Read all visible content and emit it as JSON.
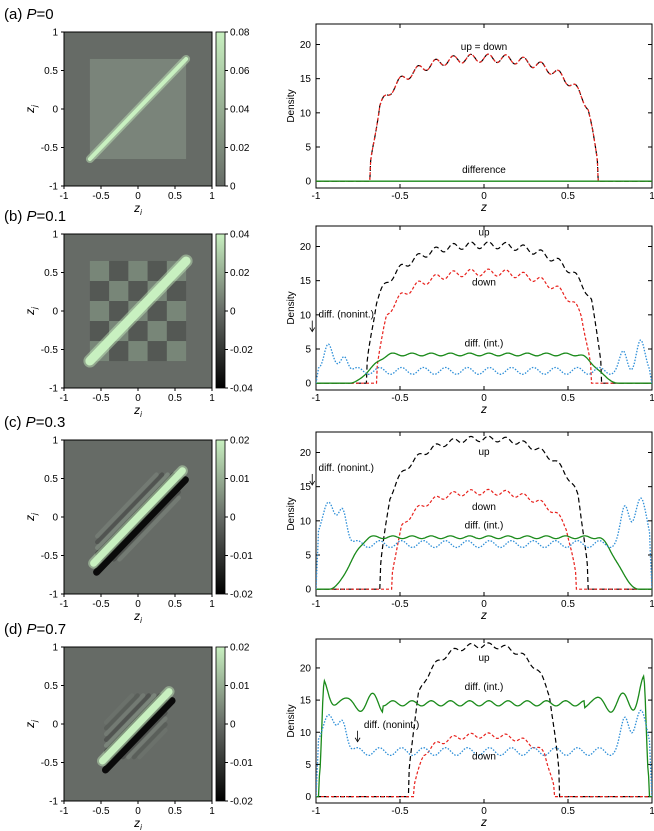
{
  "figure_description": "Four rows of panels (a)-(d) for polarizations P = 0, 0.1, 0.3, 0.7; left: correlation heat map in (z_i, z_j), right: density profiles vs z",
  "colors": {
    "up": "#000000",
    "down": "#e8211c",
    "diff_int": "#1a8a1a",
    "diff_nonint": "#2e8fd8",
    "map_background": "#666b66",
    "map_positive": "#c8f0c0",
    "map_negative": "#000000"
  },
  "chart_data": [
    {
      "type": "heatmap",
      "panel": "a",
      "label_prefix": "(a) ",
      "label_var": "P",
      "label_value": "=0",
      "xlabel": "z",
      "xlabel_sub": "i",
      "ylabel": "z",
      "ylabel_sub": "j",
      "xlim": [
        -1,
        1
      ],
      "ylim": [
        -1,
        1
      ],
      "xticks": [
        "-1",
        "-0.5",
        "0",
        "0.5",
        "1"
      ],
      "yticks": [
        "1",
        "0.5",
        "0",
        "-0.5",
        "-1"
      ],
      "colorbar_ticks": [
        "0.08",
        "0.06",
        "0.04",
        "0.02",
        "0"
      ],
      "colorbar_range": [
        0,
        0.08
      ],
      "diagonal_extent": [
        -0.65,
        0.65
      ],
      "stripe_count": 0
    },
    {
      "type": "line",
      "panel": "a",
      "xlabel": "z",
      "ylabel": "Density",
      "xlim": [
        -1,
        1
      ],
      "ylim": [
        -1,
        23
      ],
      "xticks": [
        "-1",
        "-0.5",
        "0",
        "0.5",
        "1"
      ],
      "yticks": [
        "20",
        "15",
        "10",
        "5",
        "0"
      ],
      "yticks_values": [
        20,
        15,
        10,
        5,
        0
      ],
      "series": [
        {
          "name": "up = down",
          "role": "up",
          "center": 18,
          "edge": 0.68,
          "wiggle": 0.6
        },
        {
          "name": "down",
          "role": "down",
          "center": 18,
          "edge": 0.68,
          "wiggle": 0.6
        },
        {
          "name": "difference",
          "role": "diff_int",
          "level": 0
        }
      ],
      "annotations": [
        {
          "text": "up = down",
          "x": 0,
          "y": 19.2
        },
        {
          "text": "difference",
          "x": 0,
          "y": 1.2
        }
      ]
    },
    {
      "type": "heatmap",
      "panel": "b",
      "label_prefix": "(b) ",
      "label_var": "P",
      "label_value": "=0.1",
      "xlabel": "z",
      "xlabel_sub": "i",
      "ylabel": "z",
      "ylabel_sub": "j",
      "xlim": [
        -1,
        1
      ],
      "ylim": [
        -1,
        1
      ],
      "xticks": [
        "-1",
        "-0.5",
        "0",
        "0.5",
        "1"
      ],
      "yticks": [
        "1",
        "0.5",
        "0",
        "-0.5",
        "-1"
      ],
      "colorbar_ticks": [
        "0.04",
        "0.02",
        "0",
        "-0.02",
        "-0.04"
      ],
      "colorbar_range": [
        -0.04,
        0.04
      ],
      "diagonal_extent": [
        -0.65,
        0.65
      ],
      "stripe_count": 0
    },
    {
      "type": "line",
      "panel": "b",
      "xlabel": "z",
      "ylabel": "Density",
      "xlim": [
        -1,
        1
      ],
      "ylim": [
        -1,
        23
      ],
      "xticks": [
        "-1",
        "-0.5",
        "0",
        "0.5",
        "1"
      ],
      "yticks": [
        "20",
        "15",
        "10",
        "5",
        "0"
      ],
      "yticks_values": [
        20,
        15,
        10,
        5,
        0
      ],
      "series": [
        {
          "name": "up",
          "role": "up",
          "center": 20.2,
          "edge": 0.7,
          "wiggle": 0.5
        },
        {
          "name": "down",
          "role": "down",
          "center": 16.2,
          "edge": 0.64,
          "wiggle": 0.5
        },
        {
          "name": "diff. (int.)",
          "role": "diff_int",
          "center": 4.2,
          "edge": 0.8,
          "wiggle": 0.2
        },
        {
          "name": "diff. (nonint.)",
          "role": "diff_nonint",
          "center": 1.8,
          "edge_peak": 6,
          "wiggle": 0.5
        }
      ],
      "annotations": [
        {
          "text": "up",
          "x": 0,
          "y": 21.6
        },
        {
          "text": "down",
          "x": 0,
          "y": 14.3
        },
        {
          "text": "diff. (int.)",
          "x": 0,
          "y": 5.4
        },
        {
          "text": "diff. (nonint.)",
          "x": -0.82,
          "y": 9.6,
          "arrow": true
        }
      ]
    },
    {
      "type": "heatmap",
      "panel": "c",
      "label_prefix": "(c) ",
      "label_var": "P",
      "label_value": "=0.3",
      "xlabel": "z",
      "xlabel_sub": "i",
      "ylabel": "z",
      "ylabel_sub": "j",
      "xlim": [
        -1,
        1
      ],
      "ylim": [
        -1,
        1
      ],
      "xticks": [
        "-1",
        "-0.5",
        "0",
        "0.5",
        "1"
      ],
      "yticks": [
        "1",
        "0.5",
        "0",
        "-0.5",
        "-1"
      ],
      "colorbar_ticks": [
        "0.02",
        "0.01",
        "0",
        "-0.01",
        "-0.02"
      ],
      "colorbar_range": [
        -0.02,
        0.02
      ],
      "diagonal_extent": [
        -0.6,
        0.6
      ],
      "stripe_count": 4
    },
    {
      "type": "line",
      "panel": "c",
      "xlabel": "z",
      "ylabel": "Density",
      "xlim": [
        -1,
        1
      ],
      "ylim": [
        -1,
        23
      ],
      "xticks": [
        "-1",
        "-0.5",
        "0",
        "0.5",
        "1"
      ],
      "yticks": [
        "20",
        "15",
        "10",
        "5",
        "0"
      ],
      "yticks_values": [
        20,
        15,
        10,
        5,
        0
      ],
      "series": [
        {
          "name": "up",
          "role": "up",
          "center": 22,
          "edge": 0.62,
          "wiggle": 0.4
        },
        {
          "name": "down",
          "role": "down",
          "center": 14.2,
          "edge": 0.55,
          "wiggle": 0.4
        },
        {
          "name": "diff. (int.)",
          "role": "diff_int",
          "center": 7.6,
          "edge": 0.92,
          "wiggle": 0.2
        },
        {
          "name": "diff. (nonint.)",
          "role": "diff_nonint",
          "center": 6.6,
          "edge_peak": 13,
          "wiggle": 0.5
        }
      ],
      "annotations": [
        {
          "text": "up",
          "x": 0,
          "y": 19.6
        },
        {
          "text": "down",
          "x": 0,
          "y": 11.6
        },
        {
          "text": "diff. (int.)",
          "x": 0,
          "y": 8.9
        },
        {
          "text": "diff. (nonint.)",
          "x": -0.82,
          "y": 17.3,
          "arrow": true
        }
      ]
    },
    {
      "type": "heatmap",
      "panel": "d",
      "label_prefix": "(d) ",
      "label_var": "P",
      "label_value": "=0.7",
      "xlabel": "z",
      "xlabel_sub": "i",
      "ylabel": "z",
      "ylabel_sub": "j",
      "xlim": [
        -1,
        1
      ],
      "ylim": [
        -1,
        1
      ],
      "xticks": [
        "-1",
        "-0.5",
        "0",
        "0.5",
        "1"
      ],
      "yticks": [
        "1",
        "0.5",
        "0",
        "-0.5",
        "-1"
      ],
      "colorbar_ticks": [
        "0.02",
        "0.01",
        "0",
        "-0.01",
        "-0.02"
      ],
      "colorbar_range": [
        -0.02,
        0.02
      ],
      "diagonal_extent": [
        -0.48,
        0.42
      ],
      "stripe_count": 6
    },
    {
      "type": "line",
      "panel": "d",
      "xlabel": "z",
      "ylabel": "Density",
      "xlim": [
        -1,
        1
      ],
      "ylim": [
        -1,
        24.5
      ],
      "xticks": [
        "-1",
        "-0.5",
        "0",
        "0.5",
        "1"
      ],
      "yticks": [
        "20",
        "15",
        "10",
        "5",
        "0"
      ],
      "yticks_values": [
        20,
        15,
        10,
        5,
        0
      ],
      "series": [
        {
          "name": "up",
          "role": "up",
          "center": 23.5,
          "edge": 0.45,
          "wiggle": 0.4
        },
        {
          "name": "down",
          "role": "down",
          "center": 9.5,
          "edge": 0.42,
          "wiggle": 0.4
        },
        {
          "name": "diff. (int.)",
          "role": "diff_int",
          "center": 14.5,
          "edge": 0.98,
          "wiggle": 0.4
        },
        {
          "name": "diff. (nonint.)",
          "role": "diff_nonint",
          "center": 7,
          "edge_peak": 13,
          "wiggle": 0.6
        }
      ],
      "annotations": [
        {
          "text": "up",
          "x": 0,
          "y": 21.1
        },
        {
          "text": "down",
          "x": 0,
          "y": 5.8
        },
        {
          "text": "diff. (int.)",
          "x": 0,
          "y": 16.6
        },
        {
          "text": "diff. (nonint.)",
          "x": -0.55,
          "y": 10.7,
          "arrow": true
        }
      ]
    }
  ]
}
